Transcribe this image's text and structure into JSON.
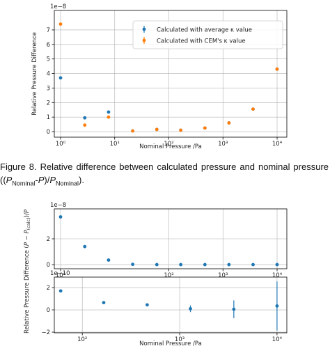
{
  "chart_data": [
    {
      "type": "scatter",
      "xlabel": "Nominal Pressure /Pa",
      "ylabel": "Relative Pressure Difference",
      "y_multiplier": "1e−8",
      "log_x": true,
      "grid": true,
      "legend": "upper right",
      "xlim": [
        0.766,
        15130
      ],
      "xticks": [
        {
          "value": 1,
          "label": "10⁰"
        },
        {
          "value": 10,
          "label": "10¹"
        },
        {
          "value": 100,
          "label": "10²"
        },
        {
          "value": 1000,
          "label": "10³"
        },
        {
          "value": 10000,
          "label": "10⁴"
        }
      ],
      "ylim": [
        -0.38,
        8.34
      ],
      "yticks": [
        0,
        1,
        2,
        3,
        4,
        5,
        6,
        7
      ],
      "series": [
        {
          "name": "Calculated with average κ value",
          "color": "#1f77b4",
          "x": [
            1,
            2.8,
            7.7,
            21.5,
            60,
            166,
            464,
            1290,
            3600,
            10000
          ],
          "values": [
            3.7,
            0.95,
            1.35,
            0.05,
            0.15,
            0.1,
            0.25,
            0.6,
            1.55,
            4.3
          ]
        },
        {
          "name": "Calculated with CEM's κ value",
          "color": "#ff7f0e",
          "x": [
            1,
            2.8,
            7.7,
            21.5,
            60,
            166,
            464,
            1290,
            3600,
            10000
          ],
          "values": [
            7.4,
            0.45,
            1.0,
            0.05,
            0.15,
            0.1,
            0.25,
            0.6,
            1.55,
            4.3
          ]
        }
      ]
    },
    {
      "type": "scatter",
      "y_multiplier": "1e−8",
      "log_x": true,
      "grid": true,
      "xlim": [
        0.766,
        15130
      ],
      "xticks": [
        {
          "value": 1,
          "label": "10⁰"
        },
        {
          "value": 100,
          "label": "10²"
        },
        {
          "value": 1000,
          "label": "10³"
        },
        {
          "value": 10000,
          "label": "10⁴"
        }
      ],
      "ylim": [
        -0.32,
        4.32
      ],
      "yticks": [
        0,
        2
      ],
      "series": [
        {
          "color": "#1f77b4",
          "x": [
            1,
            2.8,
            7.7,
            21.5,
            60,
            166,
            464,
            1290,
            3600,
            10000
          ],
          "values": [
            3.7,
            1.4,
            0.35,
            0.02,
            0,
            0,
            0,
            0,
            0,
            0
          ]
        }
      ]
    },
    {
      "type": "scatter",
      "xlabel": "Nominal Pressure /Pa",
      "y_multiplier": "1e−10",
      "log_x": true,
      "grid": true,
      "xlim": [
        51.6,
        12610
      ],
      "xticks": [
        {
          "value": 100,
          "label": "10²"
        },
        {
          "value": 1000,
          "label": "10³"
        },
        {
          "value": 10000,
          "label": "10⁴"
        }
      ],
      "ylim": [
        -2.06,
        2.94
      ],
      "yticks": [
        {
          "value": -2,
          "label": "−2"
        },
        0,
        2
      ],
      "series": [
        {
          "color": "#1f77b4",
          "x": [
            60,
            166,
            464,
            1290,
            3600,
            10000
          ],
          "values": [
            1.7,
            0.65,
            0.45,
            0.1,
            0.05,
            0.35
          ],
          "errors": [
            0,
            0,
            0,
            0.3,
            0.8,
            2.2
          ]
        }
      ]
    }
  ],
  "shared_ylabel": [
    "Relative Pressure Difference (",
    "P",
    " − ",
    "P",
    "(calc)",
    ")/",
    "P"
  ],
  "caption": [
    "Figure 8. Relative difference between calculated pressure and nominal pressure ((",
    "P",
    "Nominal",
    "-",
    "P",
    ")/",
    "P",
    "Nominal",
    ")."
  ]
}
